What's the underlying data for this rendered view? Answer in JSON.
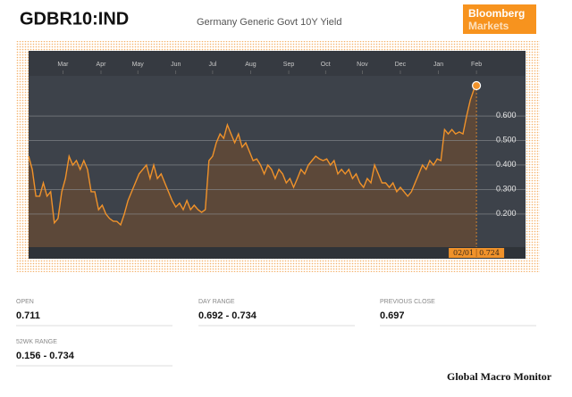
{
  "header": {
    "ticker": "GDBR10:IND",
    "name": "Germany Generic Govt 10Y Yield",
    "logo": [
      "Bloomberg",
      "Markets"
    ]
  },
  "chart_data": {
    "type": "line",
    "x": [
      0,
      3,
      6,
      9,
      12,
      15,
      18,
      21,
      24,
      27,
      30,
      33,
      36,
      39,
      42,
      45,
      48,
      51,
      54,
      57,
      60,
      63,
      66,
      69,
      72,
      75,
      78,
      81,
      84,
      87,
      90,
      93,
      96,
      99,
      102,
      105,
      108,
      111,
      114,
      117,
      120,
      123,
      126,
      129,
      132,
      135,
      138,
      141,
      144,
      147,
      150,
      153,
      156,
      159,
      162,
      165,
      168,
      171,
      174,
      177,
      180,
      183,
      186,
      189,
      192,
      195,
      198,
      201,
      204,
      207,
      210,
      213,
      216,
      219,
      222,
      225,
      228,
      231,
      234,
      237,
      240,
      243,
      246,
      249,
      252,
      255,
      258,
      261,
      264,
      267,
      270,
      273,
      276,
      279,
      282,
      285,
      288,
      291,
      294,
      297,
      300,
      303,
      306,
      309,
      312,
      315,
      318,
      321,
      324,
      327,
      330,
      333,
      336,
      339,
      342,
      345,
      348,
      351,
      354,
      357,
      360,
      363,
      365
    ],
    "values": [
      0.436,
      0.382,
      0.273,
      0.273,
      0.327,
      0.273,
      0.291,
      0.164,
      0.182,
      0.291,
      0.345,
      0.436,
      0.4,
      0.418,
      0.382,
      0.418,
      0.382,
      0.291,
      0.291,
      0.218,
      0.236,
      0.2,
      0.182,
      0.171,
      0.17,
      0.156,
      0.2,
      0.255,
      0.291,
      0.327,
      0.364,
      0.382,
      0.4,
      0.345,
      0.4,
      0.345,
      0.364,
      0.327,
      0.291,
      0.255,
      0.229,
      0.244,
      0.218,
      0.255,
      0.218,
      0.236,
      0.218,
      0.207,
      0.218,
      0.418,
      0.436,
      0.491,
      0.527,
      0.509,
      0.564,
      0.527,
      0.491,
      0.527,
      0.473,
      0.491,
      0.455,
      0.418,
      0.425,
      0.4,
      0.364,
      0.4,
      0.382,
      0.345,
      0.382,
      0.364,
      0.327,
      0.345,
      0.309,
      0.345,
      0.382,
      0.364,
      0.4,
      0.418,
      0.436,
      0.425,
      0.418,
      0.425,
      0.4,
      0.418,
      0.364,
      0.382,
      0.364,
      0.382,
      0.345,
      0.364,
      0.327,
      0.309,
      0.345,
      0.327,
      0.4,
      0.364,
      0.327,
      0.327,
      0.309,
      0.327,
      0.291,
      0.309,
      0.291,
      0.273,
      0.291,
      0.327,
      0.364,
      0.4,
      0.382,
      0.418,
      0.4,
      0.425,
      0.418,
      0.545,
      0.527,
      0.545,
      0.527,
      0.535,
      0.527,
      0.6,
      0.665,
      0.709,
      0.724
    ],
    "color": "#f0922a",
    "area_color": "#5c4839",
    "xlim": [
      0,
      405
    ],
    "xticks": [
      {
        "value": 28,
        "label": "Mar"
      },
      {
        "value": 59,
        "label": "Apr"
      },
      {
        "value": 89,
        "label": "May"
      },
      {
        "value": 120,
        "label": "Jun"
      },
      {
        "value": 150,
        "label": "Jul"
      },
      {
        "value": 181,
        "label": "Aug"
      },
      {
        "value": 212,
        "label": "Sep"
      },
      {
        "value": 242,
        "label": "Oct"
      },
      {
        "value": 272,
        "label": "Nov"
      },
      {
        "value": 303,
        "label": "Dec"
      },
      {
        "value": 334,
        "label": "Jan"
      },
      {
        "value": 365,
        "label": "Feb"
      }
    ],
    "ylim": [
      0.065,
      0.764
    ],
    "yticks": [
      {
        "value": 0.2,
        "label": "0.200"
      },
      {
        "value": 0.3,
        "label": "0.300"
      },
      {
        "value": 0.4,
        "label": "0.400"
      },
      {
        "value": 0.5,
        "label": "0.500"
      },
      {
        "value": 0.6,
        "label": "0.600"
      }
    ],
    "grid": true,
    "cursor_label": "02/01"
  },
  "stats": [
    {
      "label": "OPEN",
      "value": "0.711"
    },
    {
      "label": "DAY RANGE",
      "value": "0.692 - 0.734"
    },
    {
      "label": "PREVIOUS CLOSE",
      "value": "0.697"
    },
    {
      "label": "52WK RANGE",
      "value": "0.156 - 0.734"
    }
  ],
  "footer": "Global Macro Monitor"
}
